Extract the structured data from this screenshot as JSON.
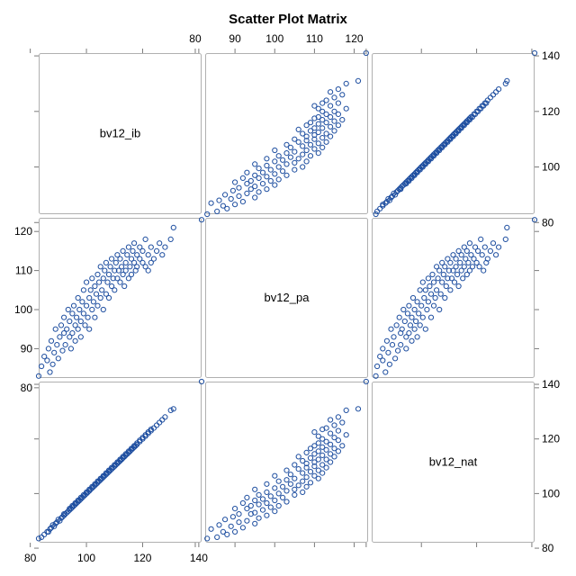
{
  "chart_data": {
    "type": "scatter",
    "subtype": "scatter-matrix",
    "title": "Scatter Plot Matrix",
    "variables": [
      "bv12_ib",
      "bv12_pa",
      "bv12_nat"
    ],
    "axes": {
      "bv12_ib": {
        "range": [
          83,
          141
        ],
        "ticks": [
          80,
          100,
          120,
          140
        ]
      },
      "bv12_pa": {
        "range": [
          82.5,
          123.5
        ],
        "ticks": [
          80,
          90,
          100,
          110,
          120
        ]
      },
      "bv12_nat": {
        "range": [
          82,
          141
        ],
        "ticks": [
          80,
          100,
          120,
          140
        ]
      }
    },
    "tick_placement": {
      "top": "bv12_pa",
      "bottom_left": "bv12_ib",
      "right_top": "bv12_nat",
      "left_middle": "bv12_pa",
      "right_bottom": "bv12_nat"
    },
    "marker": {
      "shape": "open-circle",
      "color": "#1f4fa0"
    },
    "grid": false,
    "legend": "none",
    "observations": {
      "columns": [
        "bv12_ib",
        "bv12_pa",
        "bv12_nat"
      ],
      "rows": [
        [
          83,
          83,
          83.5
        ],
        [
          84,
          85.5,
          84
        ],
        [
          85,
          88,
          85
        ],
        [
          86,
          87,
          86
        ],
        [
          86.5,
          90,
          86
        ],
        [
          87,
          84,
          87
        ],
        [
          87.5,
          92,
          87.5
        ],
        [
          88,
          86,
          88.5
        ],
        [
          88.5,
          89,
          88
        ],
        [
          89,
          95,
          89
        ],
        [
          89.5,
          91,
          89.5
        ],
        [
          90,
          87.5,
          90.5
        ],
        [
          90.5,
          93,
          90
        ],
        [
          91,
          96,
          91
        ],
        [
          91.5,
          89.5,
          91.5
        ],
        [
          92,
          94,
          92.5
        ],
        [
          92,
          98,
          92
        ],
        [
          92.5,
          91,
          92.5
        ],
        [
          93,
          95,
          93
        ],
        [
          93.5,
          100,
          93.5
        ],
        [
          94,
          93,
          94.5
        ],
        [
          94,
          97,
          94
        ],
        [
          94.5,
          90,
          94.5
        ],
        [
          95,
          99,
          95
        ],
        [
          95,
          94,
          95.5
        ],
        [
          95.5,
          101,
          95.5
        ],
        [
          96,
          96,
          96
        ],
        [
          96,
          92,
          96.5
        ],
        [
          96.5,
          98,
          96.5
        ],
        [
          97,
          103,
          97
        ],
        [
          97,
          95,
          97.5
        ],
        [
          97.5,
          100,
          97.5
        ],
        [
          98,
          97,
          98
        ],
        [
          98,
          93,
          98.5
        ],
        [
          98.5,
          102,
          98.5
        ],
        [
          99,
          99,
          99
        ],
        [
          99,
          105,
          99.5
        ],
        [
          99.5,
          96,
          99.5
        ],
        [
          100,
          101,
          100
        ],
        [
          100,
          107,
          100.5
        ],
        [
          100.5,
          98,
          100.5
        ],
        [
          101,
          103,
          101
        ],
        [
          101,
          95,
          101.5
        ],
        [
          101.5,
          105,
          101.5
        ],
        [
          102,
          100,
          102
        ],
        [
          102,
          108,
          102.5
        ],
        [
          102.5,
          102,
          102.5
        ],
        [
          103,
          106,
          103
        ],
        [
          103,
          98,
          103.5
        ],
        [
          103.5,
          104,
          103.5
        ],
        [
          104,
          109,
          104
        ],
        [
          104,
          101,
          104.5
        ],
        [
          104.5,
          107,
          104.5
        ],
        [
          105,
          103,
          105
        ],
        [
          105,
          111,
          105.5
        ],
        [
          105.5,
          105,
          105.5
        ],
        [
          106,
          108,
          106
        ],
        [
          106,
          100,
          106.5
        ],
        [
          106.5,
          110,
          106.5
        ],
        [
          107,
          104,
          107
        ],
        [
          107,
          112,
          107.5
        ],
        [
          107.5,
          107,
          107.5
        ],
        [
          108,
          109,
          108
        ],
        [
          108,
          103,
          108.5
        ],
        [
          108.5,
          111,
          108.5
        ],
        [
          109,
          106,
          109
        ],
        [
          109,
          113,
          109.5
        ],
        [
          109.5,
          108,
          109.5
        ],
        [
          110,
          110,
          110
        ],
        [
          110,
          105,
          110.5
        ],
        [
          110.5,
          112,
          110.5
        ],
        [
          111,
          108,
          111
        ],
        [
          111,
          114,
          111.5
        ],
        [
          111.5,
          110,
          111.5
        ],
        [
          112,
          107,
          112
        ],
        [
          112,
          113,
          112.5
        ],
        [
          112.5,
          111,
          112.5
        ],
        [
          113,
          109,
          113
        ],
        [
          113,
          115,
          113.5
        ],
        [
          113.5,
          106,
          113.5
        ],
        [
          114,
          112,
          114
        ],
        [
          114,
          110,
          114.5
        ],
        [
          114.5,
          114,
          114.5
        ],
        [
          115,
          108,
          115
        ],
        [
          115,
          116,
          115.5
        ],
        [
          115.5,
          111,
          115.5
        ],
        [
          116,
          113,
          116
        ],
        [
          116,
          109,
          116.5
        ],
        [
          116.5,
          115,
          116.5
        ],
        [
          117,
          112,
          117
        ],
        [
          117,
          117,
          117.5
        ],
        [
          117.5,
          110,
          117.5
        ],
        [
          118,
          114,
          118
        ],
        [
          118,
          111,
          118.5
        ],
        [
          119,
          113,
          119
        ],
        [
          119,
          116,
          119.5
        ],
        [
          120,
          112,
          120
        ],
        [
          120,
          115,
          120.5
        ],
        [
          121,
          111,
          121
        ],
        [
          121,
          118,
          121.5
        ],
        [
          122,
          114,
          122
        ],
        [
          122,
          110,
          122.5
        ],
        [
          123,
          116,
          123
        ],
        [
          123,
          112,
          123.5
        ],
        [
          124,
          113,
          124
        ],
        [
          125,
          115,
          125
        ],
        [
          126,
          117,
          126
        ],
        [
          127,
          114,
          127
        ],
        [
          128,
          116,
          128
        ],
        [
          130,
          118,
          130.5
        ],
        [
          131,
          121,
          131
        ],
        [
          141,
          123,
          141
        ]
      ]
    }
  }
}
